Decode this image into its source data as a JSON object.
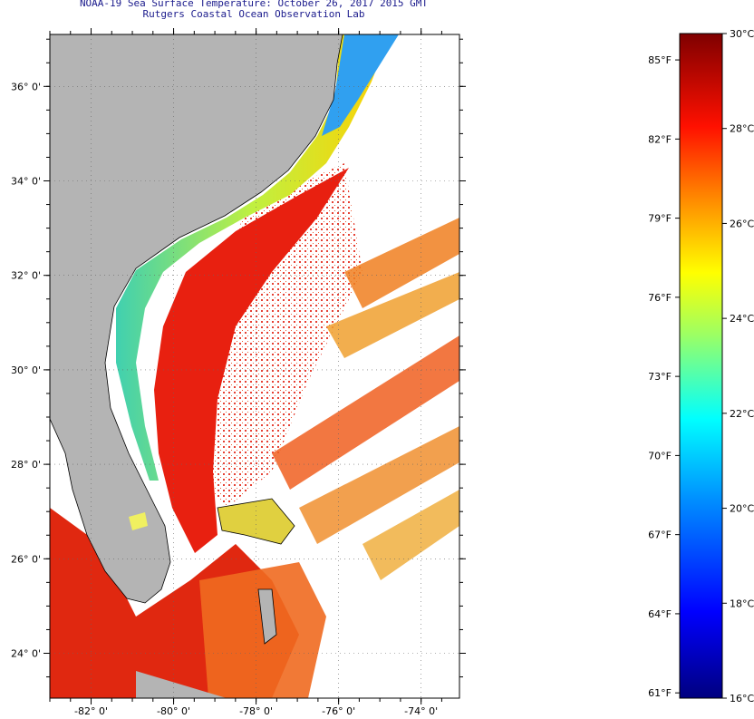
{
  "header": {
    "title": "NOAA-19 Sea Surface Temperature:  October 26, 2017 2015 GMT",
    "subtitle": "Rutgers Coastal Ocean Observation Lab"
  },
  "map": {
    "longitude_ticks": [
      {
        "value": -82,
        "label": "-82° 0'"
      },
      {
        "value": -80,
        "label": "-80° 0'"
      },
      {
        "value": -78,
        "label": "-78° 0'"
      },
      {
        "value": -76,
        "label": "-76° 0'"
      },
      {
        "value": -74,
        "label": "-74° 0'"
      }
    ],
    "latitude_ticks": [
      {
        "value": 36,
        "label": "36° 0'"
      },
      {
        "value": 34,
        "label": "34° 0'"
      },
      {
        "value": 32,
        "label": "32° 0'"
      },
      {
        "value": 30,
        "label": "30° 0'"
      },
      {
        "value": 28,
        "label": "28° 0'"
      },
      {
        "value": 26,
        "label": "26° 0'"
      },
      {
        "value": 24,
        "label": "24° 0'"
      }
    ],
    "lon_range": [
      -83,
      -73.07
    ],
    "lat_range": [
      23.05,
      37.1
    ]
  },
  "colorbar": {
    "celsius_range": [
      16,
      30
    ],
    "celsius_labels": [
      {
        "value": 30,
        "label": "30°C"
      },
      {
        "value": 28,
        "label": "28°C"
      },
      {
        "value": 26,
        "label": "26°C"
      },
      {
        "value": 24,
        "label": "24°C"
      },
      {
        "value": 22,
        "label": "22°C"
      },
      {
        "value": 20,
        "label": "20°C"
      },
      {
        "value": 18,
        "label": "18°C"
      },
      {
        "value": 16,
        "label": "16°C"
      }
    ],
    "fahrenheit_labels": [
      {
        "value": 85,
        "label": "85°F"
      },
      {
        "value": 82,
        "label": "82°F"
      },
      {
        "value": 79,
        "label": "79°F"
      },
      {
        "value": 76,
        "label": "76°F"
      },
      {
        "value": 73,
        "label": "73°F"
      },
      {
        "value": 70,
        "label": "70°F"
      },
      {
        "value": 67,
        "label": "67°F"
      },
      {
        "value": 64,
        "label": "64°F"
      },
      {
        "value": 61,
        "label": "61°F"
      }
    ],
    "colors": [
      "#00007f",
      "#0000ff",
      "#0080ff",
      "#00ffff",
      "#80ff80",
      "#ffff00",
      "#ff8000",
      "#ff0000",
      "#7f0000"
    ]
  }
}
